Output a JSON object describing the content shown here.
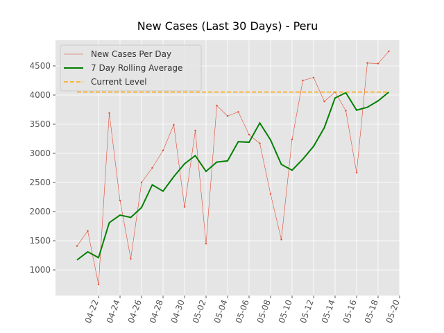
{
  "chart_data": {
    "type": "line",
    "title": "New Cases (Last 30 Days) - Peru",
    "x": [
      "04-20",
      "04-21",
      "04-22",
      "04-23",
      "04-24",
      "04-25",
      "04-26",
      "04-27",
      "04-28",
      "04-29",
      "04-30",
      "05-01",
      "05-02",
      "05-03",
      "05-04",
      "05-05",
      "05-06",
      "05-07",
      "05-08",
      "05-09",
      "05-10",
      "05-11",
      "05-12",
      "05-13",
      "05-14",
      "05-15",
      "05-16",
      "05-17",
      "05-18",
      "05-19"
    ],
    "series": [
      {
        "name": "New Cases Per Day",
        "color": "#e24a33",
        "values": [
          1410,
          1667,
          750,
          3690,
          2190,
          1190,
          2500,
          2750,
          3050,
          3490,
          2080,
          3390,
          1450,
          3820,
          3640,
          3710,
          3320,
          3170,
          2300,
          1520,
          3240,
          4250,
          4300,
          3890,
          4050,
          3730,
          2670,
          4550,
          4540,
          4750
        ]
      },
      {
        "name": "7 Day Rolling Average",
        "color": "#008000",
        "values": [
          1170,
          1310,
          1210,
          1810,
          1940,
          1900,
          2070,
          2460,
          2350,
          2600,
          2820,
          2960,
          2690,
          2850,
          2870,
          3200,
          3190,
          3520,
          3230,
          2810,
          2710,
          2900,
          3120,
          3440,
          3950,
          4040,
          3740,
          3790,
          3900,
          4050
        ]
      }
    ],
    "hline": {
      "name": "Current Level",
      "color": "#ffa500",
      "value": 4050
    },
    "xlim": [
      "04-18",
      "05-20"
    ],
    "xticks": [
      "04-22",
      "04-24",
      "04-26",
      "04-28",
      "04-30",
      "05-02",
      "05-04",
      "05-06",
      "05-08",
      "05-10",
      "05-12",
      "05-14",
      "05-16",
      "05-18",
      "05-20"
    ],
    "ylim": [
      560,
      4940
    ],
    "yticks": [
      1000,
      1500,
      2000,
      2500,
      3000,
      3500,
      4000,
      4500
    ],
    "grid": true,
    "legend": "upper left"
  }
}
